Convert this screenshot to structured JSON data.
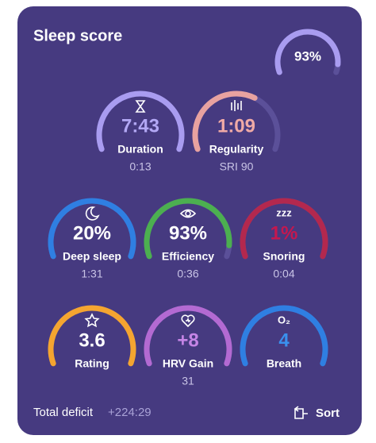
{
  "header": {
    "title": "Sleep score",
    "score": "93%"
  },
  "gauges": [
    {
      "value": "7:43",
      "label": "Duration",
      "detail": "0:13"
    },
    {
      "value": "1:09",
      "label": "Regularity",
      "detail": "SRI 90"
    },
    {
      "value": "20%",
      "label": "Deep sleep",
      "detail": "1:31"
    },
    {
      "value": "93%",
      "label": "Efficiency",
      "detail": "0:36"
    },
    {
      "value": "1%",
      "label": "Snoring",
      "detail": "0:04",
      "icon": "zzz"
    },
    {
      "value": "3.6",
      "label": "Rating"
    },
    {
      "value": "+8",
      "label": "HRV Gain",
      "detail": "31"
    },
    {
      "value": "4",
      "label": "Breath",
      "icon": "O₂"
    }
  ],
  "footer": {
    "label": "Total deficit",
    "value": "+224:29",
    "action": "Sort"
  }
}
